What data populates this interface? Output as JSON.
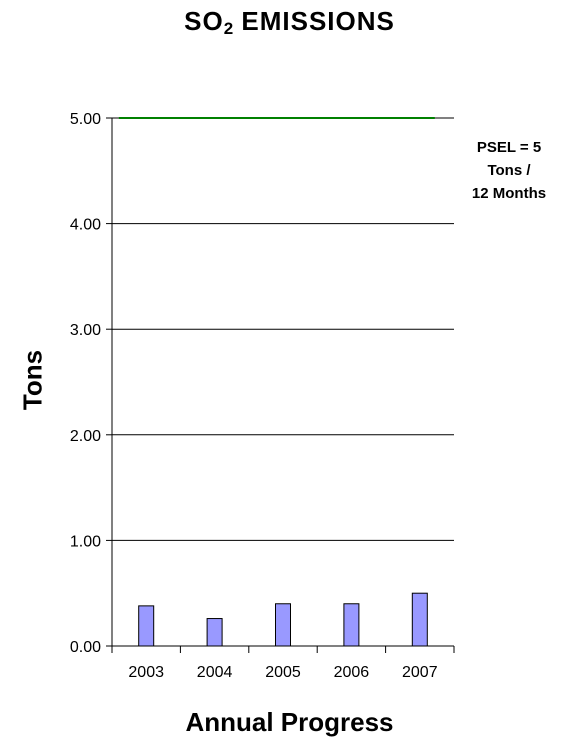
{
  "chart_data": {
    "type": "bar",
    "title_main": "SO",
    "title_sub": "2",
    "title_rest": " EMISSIONS",
    "xlabel": "Annual Progress",
    "ylabel": "Tons",
    "categories": [
      "2003",
      "2004",
      "2005",
      "2006",
      "2007"
    ],
    "values": [
      0.38,
      0.26,
      0.4,
      0.4,
      0.5
    ],
    "bar_color": "#9999ff",
    "limit_value": 5.0,
    "limit_color": "#008000",
    "limit_label": [
      "PSEL = 5",
      "Tons /",
      "12 Months"
    ],
    "ylim": [
      0,
      5
    ],
    "yticks": [
      "0.00",
      "1.00",
      "2.00",
      "3.00",
      "4.00",
      "5.00"
    ],
    "grid": true
  }
}
